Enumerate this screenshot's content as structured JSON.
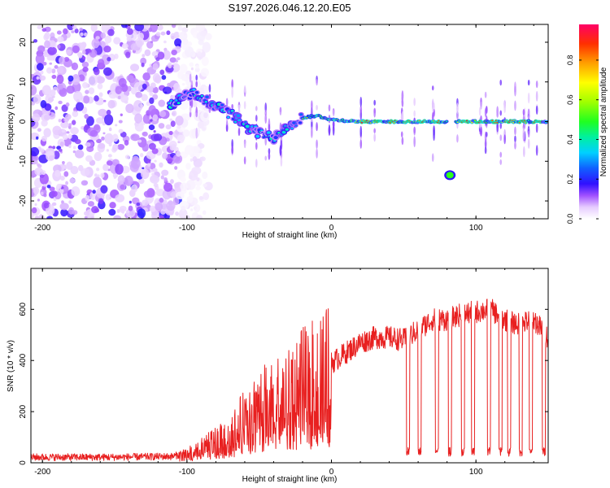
{
  "title": "S197.2026.046.12.20.E05",
  "chart_data": [
    {
      "type": "heatmap",
      "xlabel": "Height of straight line (km)",
      "ylabel": "Frequency (Hz)",
      "xlim": [
        -208,
        150
      ],
      "ylim": [
        -24.5,
        24.5
      ],
      "xticks": [
        -200,
        -100,
        0,
        100
      ],
      "yticks": [
        -20,
        -10,
        0,
        10,
        20
      ],
      "colorbar": {
        "label": "Normalized spectral amplitude",
        "range": [
          0,
          0.98
        ],
        "ticks": [
          "0.0",
          "0.2",
          "0.4",
          "0.6",
          "0.8"
        ],
        "tick_values": [
          0,
          0.2,
          0.4,
          0.6,
          0.8
        ]
      },
      "features": {
        "noise_region_km": [
          -208,
          -105
        ],
        "main_track": [
          [
            -110,
            5
          ],
          [
            -95,
            7
          ],
          [
            -80,
            4
          ],
          [
            -70,
            2
          ],
          [
            -60,
            -1
          ],
          [
            -50,
            -3
          ],
          [
            -40,
            -4
          ],
          [
            -30,
            -1
          ],
          [
            -20,
            1
          ],
          [
            -10,
            1.5
          ],
          [
            0,
            0.5
          ],
          [
            20,
            0
          ],
          [
            150,
            0
          ]
        ],
        "gap_km": [
          80,
          86
        ],
        "secondary_blob": {
          "x": 82,
          "y": -13.5,
          "amplitude": 0.5
        }
      }
    },
    {
      "type": "line",
      "xlabel": "Height of straight line (km)",
      "ylabel": "SNR (10 * v/v)",
      "xlim": [
        -208,
        150
      ],
      "ylim": [
        0,
        760
      ],
      "xticks": [
        -200,
        -100,
        0,
        100
      ],
      "yticks": [
        0,
        200,
        400,
        600
      ],
      "series": [
        {
          "name": "SNR",
          "color": "#e82020",
          "envelope": [
            [
              -208,
              22
            ],
            [
              -150,
              22
            ],
            [
              -110,
              25
            ],
            [
              -95,
              45
            ],
            [
              -80,
              90
            ],
            [
              -70,
              120
            ],
            [
              -60,
              180
            ],
            [
              -50,
              230
            ],
            [
              -40,
              260
            ],
            [
              -30,
              300
            ],
            [
              -20,
              330
            ],
            [
              -10,
              360
            ],
            [
              0,
              390
            ],
            [
              10,
              430
            ],
            [
              20,
              470
            ],
            [
              30,
              490
            ],
            [
              40,
              490
            ],
            [
              50,
              480
            ],
            [
              60,
              520
            ],
            [
              70,
              560
            ],
            [
              80,
              560
            ],
            [
              90,
              580
            ],
            [
              100,
              590
            ],
            [
              110,
              600
            ],
            [
              120,
              560
            ],
            [
              130,
              540
            ],
            [
              140,
              560
            ],
            [
              150,
              490
            ]
          ],
          "dropouts_km": [
            52,
            60,
            72,
            81,
            90,
            97,
            108,
            116,
            122,
            130,
            137,
            146
          ]
        }
      ]
    }
  ]
}
